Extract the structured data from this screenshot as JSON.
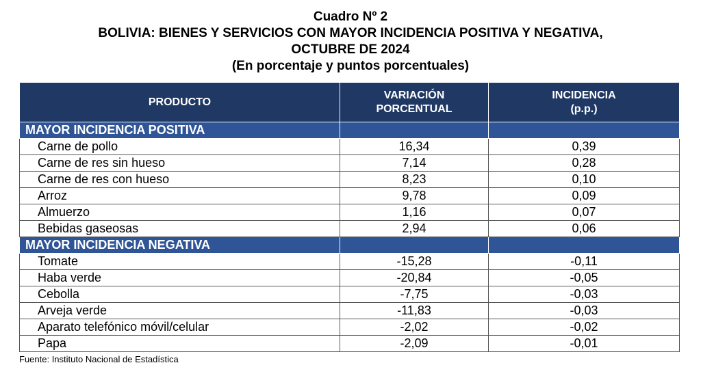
{
  "title": {
    "line1": "Cuadro Nº 2",
    "line2": "BOLIVIA: BIENES Y SERVICIOS CON MAYOR INCIDENCIA POSITIVA Y NEGATIVA,",
    "line3": "OCTUBRE DE 2024",
    "line4": "(En porcentaje y puntos porcentuales)"
  },
  "headers": {
    "producto": "PRODUCTO",
    "variacion_l1": "VARIACIÓN",
    "variacion_l2": "PORCENTUAL",
    "incidencia_l1": "INCIDENCIA",
    "incidencia_l2": "(p.p.)"
  },
  "sections": [
    {
      "label": "MAYOR INCIDENCIA POSITIVA",
      "rows": [
        {
          "producto": "Carne de pollo",
          "variacion": "16,34",
          "incidencia": "0,39"
        },
        {
          "producto": "Carne de res sin hueso",
          "variacion": "7,14",
          "incidencia": "0,28"
        },
        {
          "producto": "Carne de res con hueso",
          "variacion": "8,23",
          "incidencia": "0,10"
        },
        {
          "producto": "Arroz",
          "variacion": "9,78",
          "incidencia": "0,09"
        },
        {
          "producto": "Almuerzo",
          "variacion": "1,16",
          "incidencia": "0,07"
        },
        {
          "producto": "Bebidas gaseosas",
          "variacion": "2,94",
          "incidencia": "0,06"
        }
      ]
    },
    {
      "label": "MAYOR INCIDENCIA NEGATIVA",
      "rows": [
        {
          "producto": "Tomate",
          "variacion": "-15,28",
          "incidencia": "-0,11"
        },
        {
          "producto": "Haba verde",
          "variacion": "-20,84",
          "incidencia": "-0,05"
        },
        {
          "producto": "Cebolla",
          "variacion": "-7,75",
          "incidencia": "-0,03"
        },
        {
          "producto": "Arveja verde",
          "variacion": "-11,83",
          "incidencia": "-0,03"
        },
        {
          "producto": "Aparato telefónico móvil/celular",
          "variacion": "-2,02",
          "incidencia": "-0,02"
        },
        {
          "producto": "Papa",
          "variacion": "-2,09",
          "incidencia": "-0,01"
        }
      ]
    }
  ],
  "source": "Fuente: Instituto Nacional de Estadística",
  "colors": {
    "header_bg": "#203864",
    "section_bg": "#2f5597"
  }
}
